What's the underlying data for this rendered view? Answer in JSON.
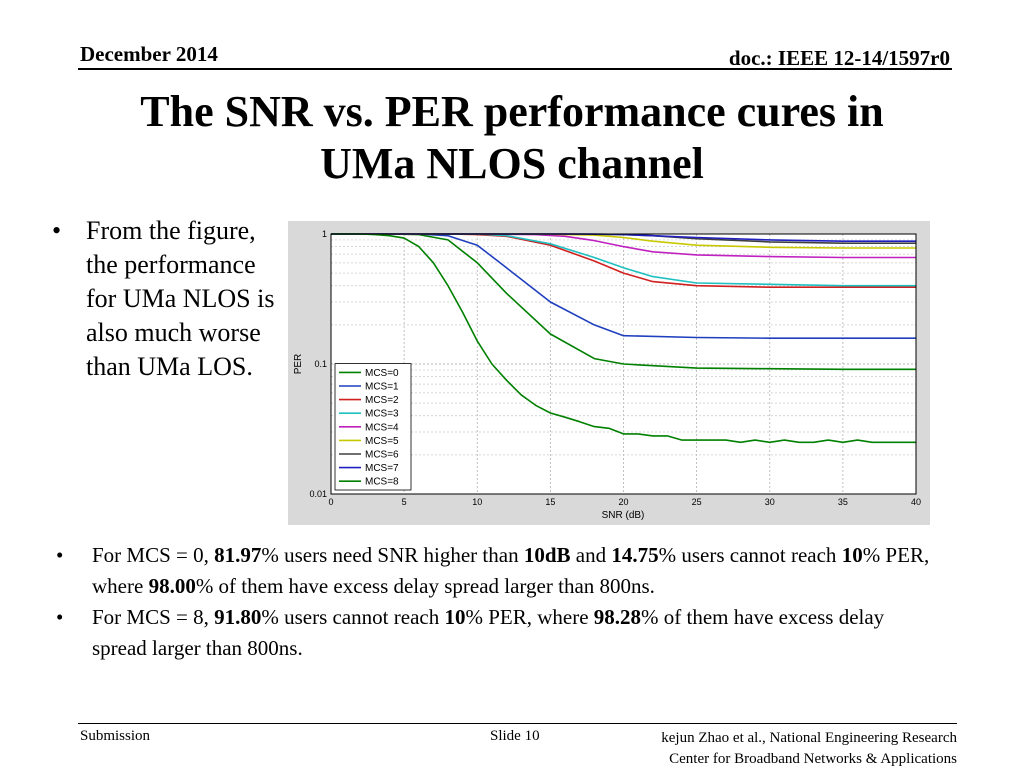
{
  "header": {
    "date": "December 2014",
    "doc": "doc.: IEEE 12-14/1597r0"
  },
  "title": {
    "line1": "The SNR vs. PER performance cures in",
    "line2": "UMa NLOS channel"
  },
  "side_bullet": "From the figure, the performance for UMa NLOS is also much worse than UMa LOS.",
  "bullets": {
    "b1": {
      "p1": "For MCS = 0, ",
      "v1": "81.97",
      "p2": "% users need SNR higher than ",
      "v2": "10dB",
      "p3": " and ",
      "v3": "14.75",
      "p4": "% users cannot reach ",
      "v4": "10",
      "p5": "% PER, where ",
      "v5": "98.00",
      "p6": "% of them have excess delay spread larger than 800ns."
    },
    "b2": {
      "p1": "For MCS = 8, ",
      "v1": "91.80",
      "p2": "% users cannot reach ",
      "v2": "10",
      "p3": "% PER, where ",
      "v3": "98.28",
      "p4": "% of them have excess delay spread larger than 800ns."
    }
  },
  "footer": {
    "submission": "Submission",
    "slide": "Slide 10",
    "author_line1": "kejun Zhao et al., National Engineering Research",
    "author_line2": "Center for Broadband Networks & Applications"
  },
  "chart_data": {
    "type": "line",
    "title": "",
    "xlabel": "SNR (dB)",
    "ylabel": "PER",
    "yscale": "log",
    "xlim": [
      0,
      40
    ],
    "ylim": [
      0.01,
      1
    ],
    "xticks": [
      "0",
      "5",
      "10",
      "15",
      "20",
      "25",
      "30",
      "35",
      "40"
    ],
    "yticks": [
      {
        "value": 1,
        "label": "1"
      },
      {
        "value": 0.1,
        "label": "0.1"
      },
      {
        "value": 0.01,
        "label": "0.01"
      }
    ],
    "grid": true,
    "legend_position": "bottom-left",
    "series": [
      {
        "name": "MCS=0",
        "color": "#008000",
        "x": [
          0,
          2,
          4,
          6,
          8,
          10,
          12,
          15,
          18,
          20,
          25,
          30,
          35,
          40
        ],
        "y": [
          1,
          1,
          1,
          0.99,
          0.9,
          0.6,
          0.35,
          0.17,
          0.11,
          0.1,
          0.093,
          0.092,
          0.091,
          0.091
        ]
      },
      {
        "name": "MCS=1",
        "color": "#1f3fbf",
        "x": [
          0,
          2,
          4,
          6,
          8,
          10,
          12,
          15,
          18,
          20,
          25,
          30,
          35,
          40
        ],
        "y": [
          1,
          1,
          1,
          1,
          0.97,
          0.82,
          0.55,
          0.3,
          0.2,
          0.165,
          0.16,
          0.158,
          0.158,
          0.158
        ]
      },
      {
        "name": "MCS=2",
        "color": "#d02020",
        "x": [
          0,
          5,
          8,
          10,
          12,
          15,
          18,
          20,
          22,
          25,
          30,
          35,
          40
        ],
        "y": [
          1,
          1,
          1,
          0.99,
          0.96,
          0.82,
          0.62,
          0.5,
          0.43,
          0.4,
          0.39,
          0.39,
          0.39
        ]
      },
      {
        "name": "MCS=3",
        "color": "#20c0c0",
        "x": [
          0,
          5,
          8,
          10,
          12,
          15,
          18,
          20,
          22,
          25,
          30,
          35,
          40
        ],
        "y": [
          1,
          1,
          1,
          1,
          0.97,
          0.84,
          0.66,
          0.55,
          0.47,
          0.42,
          0.41,
          0.4,
          0.4
        ]
      },
      {
        "name": "MCS=4",
        "color": "#c020c0",
        "x": [
          0,
          10,
          14,
          16,
          18,
          20,
          22,
          25,
          30,
          35,
          40
        ],
        "y": [
          1,
          1,
          0.99,
          0.96,
          0.89,
          0.8,
          0.73,
          0.69,
          0.67,
          0.66,
          0.66
        ]
      },
      {
        "name": "MCS=5",
        "color": "#c8c800",
        "x": [
          0,
          14,
          18,
          20,
          22,
          25,
          30,
          35,
          40
        ],
        "y": [
          1,
          1,
          0.98,
          0.94,
          0.88,
          0.82,
          0.79,
          0.78,
          0.78
        ]
      },
      {
        "name": "MCS=6",
        "color": "#404040",
        "x": [
          0,
          16,
          20,
          22,
          25,
          30,
          35,
          40
        ],
        "y": [
          1,
          1,
          0.99,
          0.97,
          0.92,
          0.87,
          0.85,
          0.85
        ]
      },
      {
        "name": "MCS=7",
        "color": "#2020c0",
        "x": [
          0,
          18,
          20,
          22,
          25,
          30,
          35,
          40
        ],
        "y": [
          1,
          1,
          0.99,
          0.97,
          0.94,
          0.9,
          0.88,
          0.88
        ]
      },
      {
        "name": "MCS=8",
        "color": "#008000",
        "x": [
          0,
          2,
          3,
          4,
          5,
          6,
          7,
          8,
          9,
          10,
          11,
          12,
          13,
          14,
          15,
          16,
          17,
          18,
          19,
          20,
          21,
          22,
          23,
          24,
          25,
          26,
          27,
          28,
          29,
          30,
          31,
          32,
          33,
          34,
          35,
          36,
          37,
          38,
          39,
          40
        ],
        "y": [
          1,
          1,
          0.99,
          0.97,
          0.93,
          0.8,
          0.6,
          0.4,
          0.25,
          0.15,
          0.1,
          0.075,
          0.058,
          0.048,
          0.042,
          0.039,
          0.036,
          0.033,
          0.032,
          0.029,
          0.029,
          0.028,
          0.028,
          0.026,
          0.026,
          0.026,
          0.026,
          0.025,
          0.026,
          0.025,
          0.026,
          0.025,
          0.025,
          0.026,
          0.025,
          0.026,
          0.025,
          0.025,
          0.025,
          0.025
        ]
      }
    ]
  }
}
